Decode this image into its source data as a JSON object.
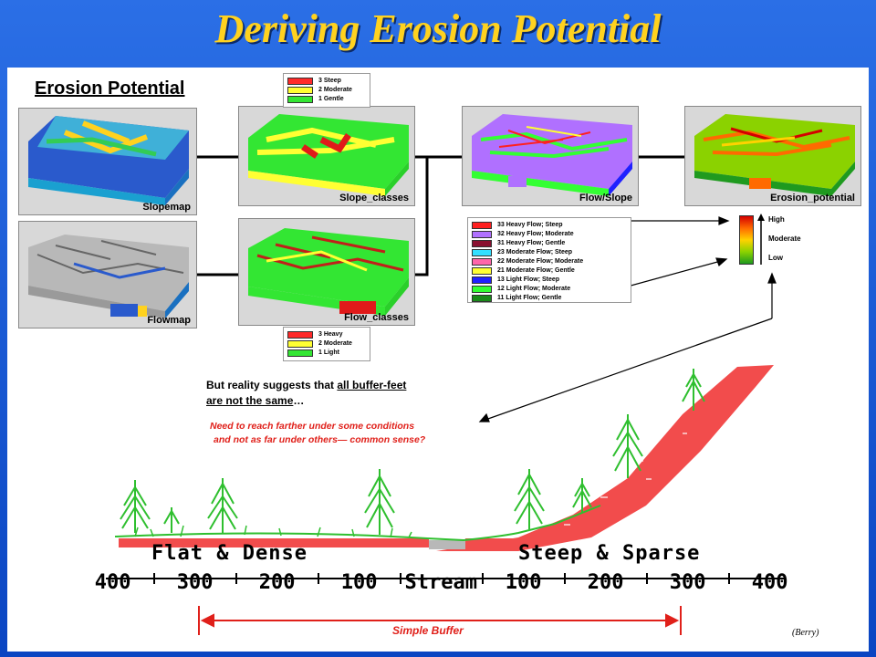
{
  "slide": {
    "title": "Deriving Erosion Potential",
    "section_title": "Erosion Potential",
    "credit": "(Berry)"
  },
  "maps": {
    "slopemap": "Slopemap",
    "flowmap": "Flowmap",
    "slope_classes": "Slope_classes",
    "flow_classes": "Flow_classes",
    "flow_slope": "Flow/Slope",
    "erosion_potential": "Erosion_potential"
  },
  "slope_legend": [
    {
      "label": "3 Steep",
      "color": "#ff2a2a"
    },
    {
      "label": "2 Moderate",
      "color": "#ffff33"
    },
    {
      "label": "1 Gentle",
      "color": "#33e633"
    }
  ],
  "flow_legend": [
    {
      "label": "3 Heavy",
      "color": "#ff2a2a"
    },
    {
      "label": "2 Moderate",
      "color": "#ffff33"
    },
    {
      "label": "1 Light",
      "color": "#33e633"
    }
  ],
  "flowslope_legend": [
    {
      "label": "33 Heavy Flow; Steep",
      "color": "#ff2020"
    },
    {
      "label": "32 Heavy Flow; Moderate",
      "color": "#b070ff"
    },
    {
      "label": "31 Heavy Flow; Gentle",
      "color": "#8a1030"
    },
    {
      "label": "23 Moderate Flow; Steep",
      "color": "#33e0ff"
    },
    {
      "label": "22 Moderate Flow; Moderate",
      "color": "#ff66aa"
    },
    {
      "label": "21 Moderate Flow; Gentle",
      "color": "#ffff33"
    },
    {
      "label": "13 Light Flow; Steep",
      "color": "#2020ff"
    },
    {
      "label": "12 Light Flow; Moderate",
      "color": "#33ff33"
    },
    {
      "label": "11 Light Flow; Gentle",
      "color": "#1a8a1a"
    }
  ],
  "erosion_scale": {
    "high": "High",
    "moderate": "Moderate",
    "low": "Low"
  },
  "reality": {
    "line1_pre": "But reality suggests that ",
    "line1_u": "all buffer-feet",
    "line2_u": "are not the same",
    "line2_post": "…"
  },
  "need": {
    "line1": "Need to reach farther under some conditions",
    "line2": "and not as far under others— common sense?"
  },
  "profile": {
    "flat_label": "Flat & Dense",
    "steep_label": "Steep & Sparse",
    "distances": [
      "400",
      "300",
      "200",
      "100",
      "Stream",
      "100",
      "200",
      "300",
      "400"
    ],
    "buffer_label": "Simple Buffer"
  }
}
